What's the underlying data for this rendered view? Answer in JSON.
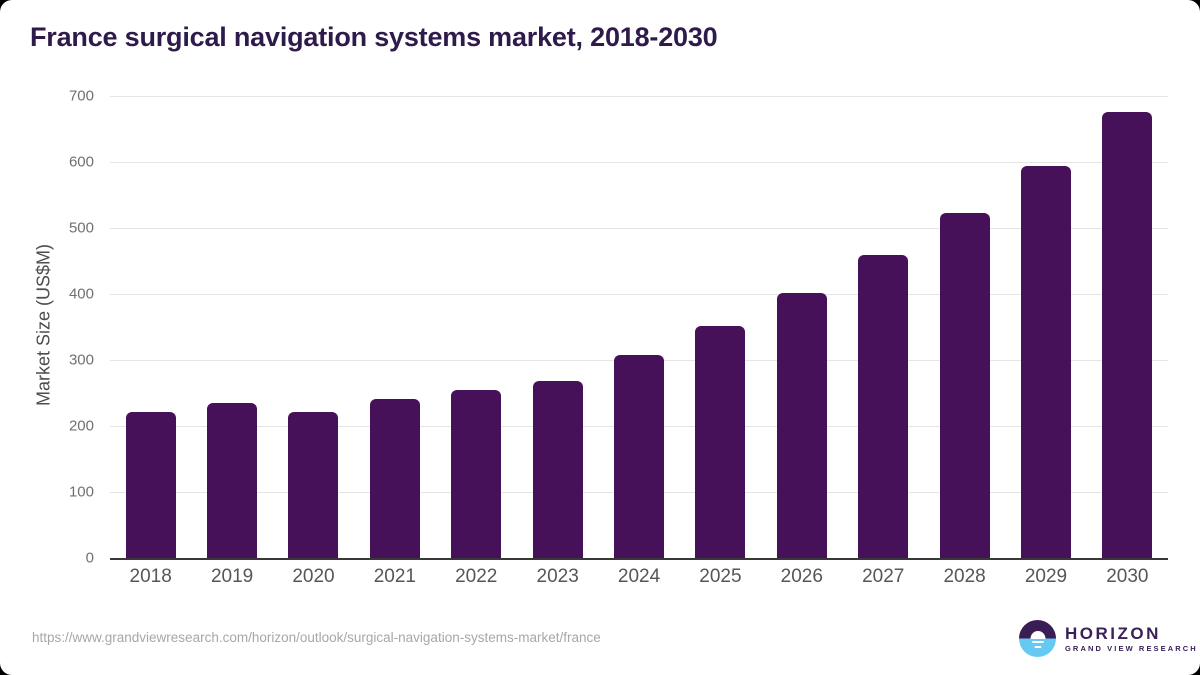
{
  "page": {
    "title": "France surgical navigation systems market, 2018-2030"
  },
  "chart_data": {
    "type": "bar",
    "title": "France surgical navigation systems market, 2018-2030",
    "categories": [
      "2018",
      "2019",
      "2020",
      "2021",
      "2022",
      "2023",
      "2024",
      "2025",
      "2026",
      "2027",
      "2028",
      "2029",
      "2030"
    ],
    "values": [
      221,
      235,
      221,
      241,
      254,
      268,
      308,
      352,
      402,
      459,
      523,
      594,
      676
    ],
    "xlabel": "",
    "ylabel": "Market Size (US$M)",
    "ylim": [
      0,
      700
    ],
    "yticks": [
      0,
      100,
      200,
      300,
      400,
      500,
      600,
      700
    ],
    "grid": true,
    "legend": false,
    "bar_color": "#471159"
  },
  "footer": {
    "source_url": "https://www.grandviewresearch.com/horizon/outlook/surgical-navigation-systems-market/france",
    "logo_title": "HORIZON",
    "logo_subtitle": "GRAND VIEW RESEARCH"
  },
  "colors": {
    "bar": "#471159",
    "title_text": "#2f1a4c",
    "y_tick_text": "#707070",
    "x_tick_text": "#565656",
    "gridline": "#e5e5e5",
    "axis_line": "#383838",
    "url_text": "#a7a7a7",
    "logo_purple": "#3a1d55",
    "logo_blue": "#66c9f1"
  }
}
